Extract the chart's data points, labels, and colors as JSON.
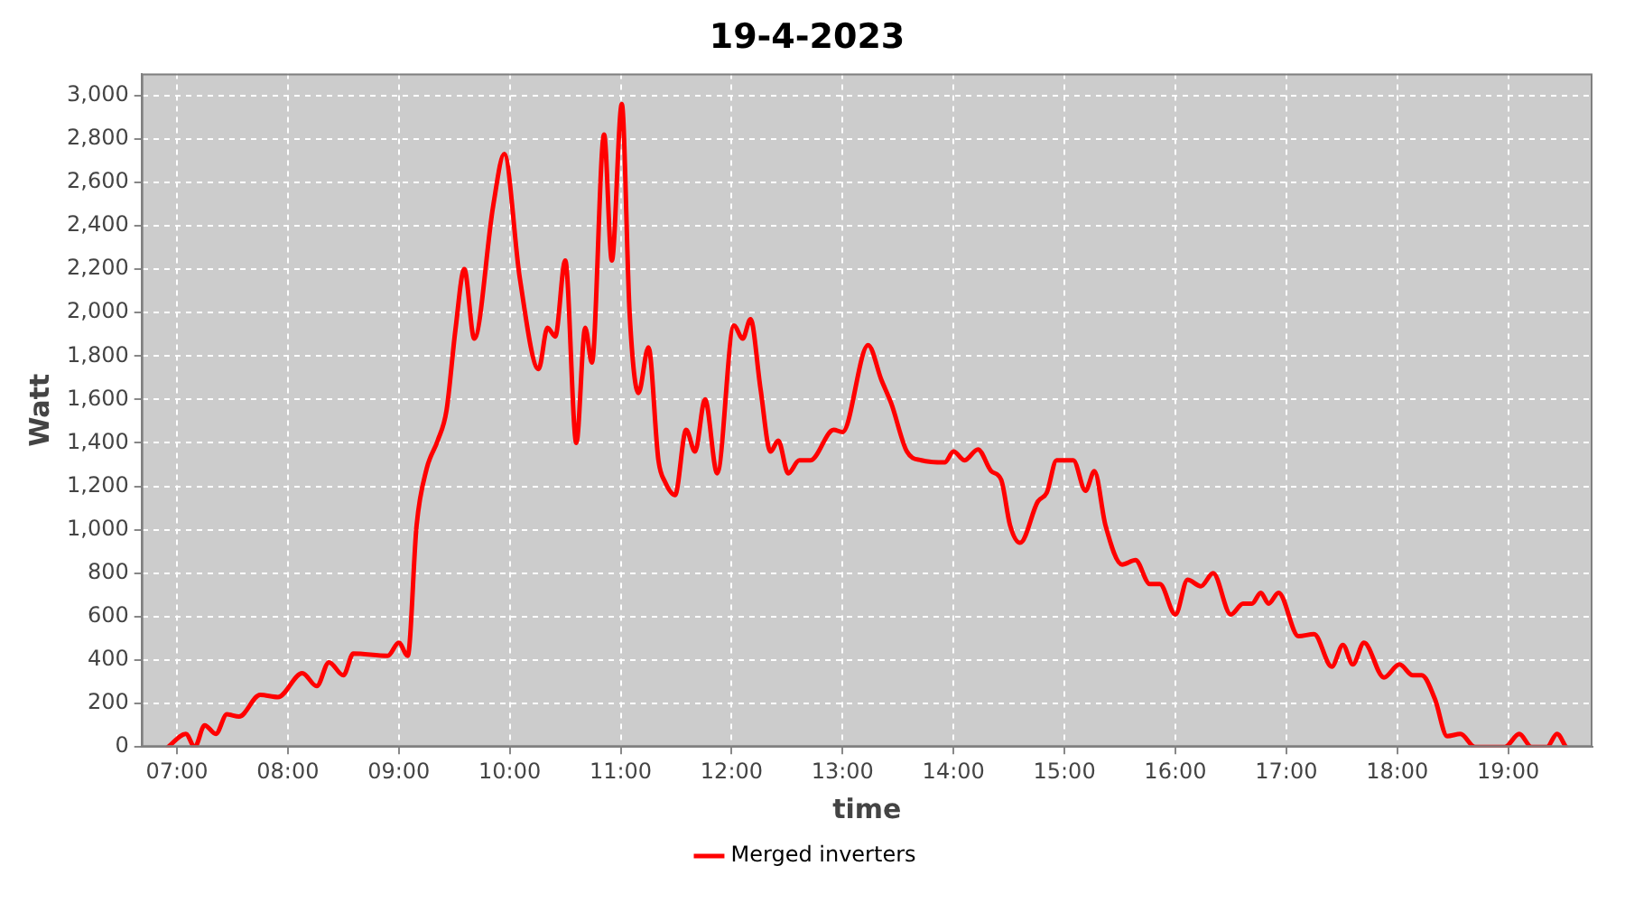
{
  "chart_data": {
    "type": "line",
    "title": "19-4-2023",
    "xlabel": "time",
    "ylabel": "Watt",
    "x": [
      6.92,
      7.08,
      7.16,
      7.25,
      7.35,
      7.45,
      7.56,
      7.75,
      7.91,
      8.13,
      8.26,
      8.37,
      8.5,
      8.59,
      8.9,
      9.0,
      9.08,
      9.16,
      9.25,
      9.35,
      9.43,
      9.51,
      9.59,
      9.68,
      9.85,
      9.95,
      10.09,
      10.26,
      10.34,
      10.41,
      10.5,
      10.6,
      10.68,
      10.74,
      10.85,
      10.92,
      11.01,
      11.08,
      11.16,
      11.25,
      11.34,
      11.4,
      11.49,
      11.59,
      11.67,
      11.76,
      11.87,
      12.02,
      12.1,
      12.17,
      12.26,
      12.35,
      12.42,
      12.51,
      12.61,
      12.71,
      12.92,
      13.0,
      13.23,
      13.35,
      13.44,
      13.58,
      13.71,
      13.92,
      14.0,
      14.1,
      14.22,
      14.34,
      14.43,
      14.51,
      14.6,
      14.76,
      14.84,
      14.93,
      15.08,
      15.19,
      15.27,
      15.37,
      15.52,
      15.64,
      15.77,
      15.86,
      16.0,
      16.11,
      16.23,
      16.34,
      16.5,
      16.61,
      16.69,
      16.77,
      16.84,
      16.93,
      17.11,
      17.25,
      17.41,
      17.51,
      17.6,
      17.7,
      17.88,
      18.02,
      18.14,
      18.22,
      18.34,
      18.45,
      18.57,
      18.7,
      18.97,
      19.1,
      19.21,
      19.35,
      19.44,
      19.52
    ],
    "series": [
      {
        "name": "Merged inverters",
        "color": "#ff0000",
        "values": [
          0,
          60,
          0,
          100,
          60,
          150,
          140,
          240,
          230,
          340,
          280,
          390,
          330,
          430,
          420,
          480,
          420,
          1020,
          1280,
          1410,
          1550,
          1920,
          2200,
          1880,
          2490,
          2730,
          2160,
          1740,
          1930,
          1890,
          2240,
          1400,
          1930,
          1770,
          2820,
          2240,
          2960,
          2000,
          1630,
          1840,
          1320,
          1220,
          1160,
          1460,
          1360,
          1600,
          1260,
          1940,
          1880,
          1970,
          1650,
          1360,
          1410,
          1260,
          1320,
          1320,
          1460,
          1450,
          1850,
          1690,
          1580,
          1360,
          1320,
          1310,
          1360,
          1320,
          1370,
          1270,
          1230,
          1020,
          940,
          1130,
          1170,
          1320,
          1320,
          1180,
          1270,
          1020,
          840,
          860,
          750,
          750,
          610,
          770,
          740,
          800,
          610,
          660,
          660,
          710,
          660,
          710,
          510,
          520,
          370,
          470,
          380,
          480,
          320,
          380,
          330,
          330,
          220,
          50,
          60,
          0,
          0,
          60,
          0,
          0,
          60,
          0
        ]
      }
    ],
    "xlim": [
      6.68,
      19.76
    ],
    "xticks": [
      {
        "value": 7,
        "label": "07:00"
      },
      {
        "value": 8,
        "label": "08:00"
      },
      {
        "value": 9,
        "label": "09:00"
      },
      {
        "value": 10,
        "label": "10:00"
      },
      {
        "value": 11,
        "label": "11:00"
      },
      {
        "value": 12,
        "label": "12:00"
      },
      {
        "value": 13,
        "label": "13:00"
      },
      {
        "value": 14,
        "label": "14:00"
      },
      {
        "value": 15,
        "label": "15:00"
      },
      {
        "value": 16,
        "label": "16:00"
      },
      {
        "value": 17,
        "label": "17:00"
      },
      {
        "value": 18,
        "label": "18:00"
      },
      {
        "value": 19,
        "label": "19:00"
      }
    ],
    "ylim": [
      0,
      3100
    ],
    "yticks": [
      0,
      200,
      400,
      600,
      800,
      {
        "value": 1000,
        "label": "1,000"
      },
      {
        "value": 1200,
        "label": "1,200"
      },
      {
        "value": 1400,
        "label": "1,400"
      },
      {
        "value": 1600,
        "label": "1,600"
      },
      {
        "value": 1800,
        "label": "1,800"
      },
      {
        "value": 2000,
        "label": "2,000"
      },
      {
        "value": 2200,
        "label": "2,200"
      },
      {
        "value": 2400,
        "label": "2,400"
      },
      {
        "value": 2600,
        "label": "2,600"
      },
      {
        "value": 2800,
        "label": "2,800"
      },
      {
        "value": 3000,
        "label": "3,000"
      }
    ],
    "grid": true,
    "legend": "bottom",
    "marker": "none",
    "line_style": "solid"
  }
}
